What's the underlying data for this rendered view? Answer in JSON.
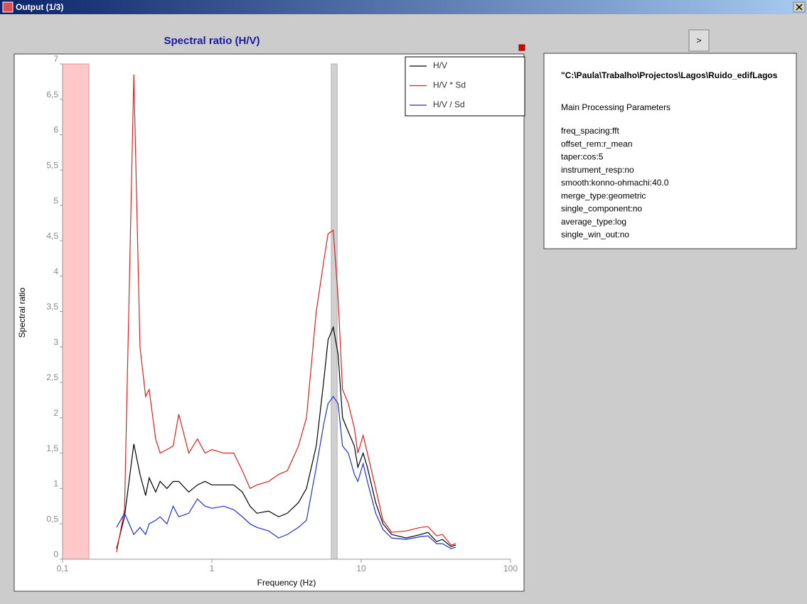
{
  "window": {
    "title": "Output (1/3)"
  },
  "button": ">",
  "info": {
    "path": "\"C:\\Paula\\Trabalho\\Projectos\\Lagos\\Ruido_edifLagos",
    "heading": "Main Processing Parameters",
    "parameters": [
      "freq_spacing:fft",
      "offset_rem:r_mean",
      "taper:cos:5",
      "instrument_resp:no",
      "smooth:konno-ohmachi:40.0",
      "merge_type:geometric",
      "single_component:no",
      "average_type:log",
      "single_win_out:no"
    ]
  },
  "chart_data": {
    "type": "line",
    "title": "Spectral ratio (H/V)",
    "xlabel": "Frequency (Hz)",
    "ylabel": "Spectral ratio",
    "xscale": "log",
    "legend": "upper right",
    "xlim": [
      0.1,
      100
    ],
    "xticks": [
      {
        "value": 0.1,
        "label": "0,1"
      },
      1,
      10,
      100
    ],
    "ylim": [
      0,
      7
    ],
    "yticks": [
      0,
      {
        "value": 0.5,
        "label": "0,5"
      },
      1,
      {
        "value": 1.5,
        "label": "1,5"
      },
      2,
      {
        "value": 2.5,
        "label": "2,5"
      },
      3,
      {
        "value": 3.5,
        "label": "3,5"
      },
      4,
      {
        "value": 4.5,
        "label": "4,5"
      },
      5,
      {
        "value": 5.5,
        "label": "5,5"
      },
      6,
      {
        "value": 6.5,
        "label": "6,5"
      },
      7
    ],
    "shaded_regions": [
      {
        "x": [
          0.1,
          0.15
        ],
        "color": "#ffc8c8"
      },
      {
        "x": [
          6.3,
          6.9
        ],
        "color": "#d0d0d0"
      }
    ],
    "x": [
      0.23,
      0.26,
      0.3,
      0.33,
      0.36,
      0.38,
      0.42,
      0.45,
      0.5,
      0.55,
      0.6,
      0.7,
      0.8,
      0.9,
      1,
      1.2,
      1.4,
      1.6,
      1.8,
      2,
      2.4,
      2.8,
      3.2,
      3.8,
      4.3,
      5,
      5.6,
      6,
      6.5,
      7,
      7.5,
      8.2,
      9,
      9.5,
      10.3,
      11,
      12.5,
      14,
      16,
      20,
      25,
      28,
      32,
      35,
      40,
      43
    ],
    "series": [
      {
        "name": "H/V",
        "color": "#000000",
        "values": [
          0.15,
          0.6,
          1.63,
          1.2,
          0.9,
          1.15,
          0.95,
          1.1,
          1.0,
          1.1,
          1.1,
          0.95,
          1.05,
          1.1,
          1.05,
          1.05,
          1.05,
          0.95,
          0.75,
          0.65,
          0.68,
          0.6,
          0.65,
          0.8,
          1.0,
          1.6,
          2.5,
          3.1,
          3.28,
          2.9,
          2.0,
          1.8,
          1.6,
          1.3,
          1.5,
          1.3,
          0.8,
          0.5,
          0.35,
          0.3,
          0.35,
          0.38,
          0.25,
          0.28,
          0.18,
          0.2
        ]
      },
      {
        "name": "H/V * Sd",
        "color": "#e02020",
        "values": [
          0.1,
          0.7,
          6.85,
          3.0,
          2.3,
          2.4,
          1.7,
          1.5,
          1.55,
          1.6,
          2.05,
          1.5,
          1.7,
          1.5,
          1.55,
          1.5,
          1.5,
          1.25,
          1.0,
          1.05,
          1.1,
          1.2,
          1.25,
          1.6,
          2.0,
          3.5,
          4.2,
          4.6,
          4.65,
          3.7,
          2.4,
          2.2,
          1.85,
          1.5,
          1.75,
          1.5,
          1.0,
          0.55,
          0.38,
          0.4,
          0.45,
          0.46,
          0.33,
          0.35,
          0.2,
          0.22
        ]
      },
      {
        "name": "H/V / Sd",
        "color": "#2030d0",
        "values": [
          0.45,
          0.65,
          0.35,
          0.45,
          0.35,
          0.5,
          0.55,
          0.6,
          0.5,
          0.75,
          0.6,
          0.65,
          0.85,
          0.75,
          0.72,
          0.75,
          0.7,
          0.6,
          0.5,
          0.45,
          0.4,
          0.3,
          0.35,
          0.45,
          0.55,
          1.3,
          1.9,
          2.2,
          2.3,
          2.2,
          1.6,
          1.5,
          1.2,
          1.1,
          1.35,
          1.1,
          0.65,
          0.42,
          0.3,
          0.28,
          0.32,
          0.33,
          0.22,
          0.22,
          0.15,
          0.17
        ]
      }
    ]
  }
}
